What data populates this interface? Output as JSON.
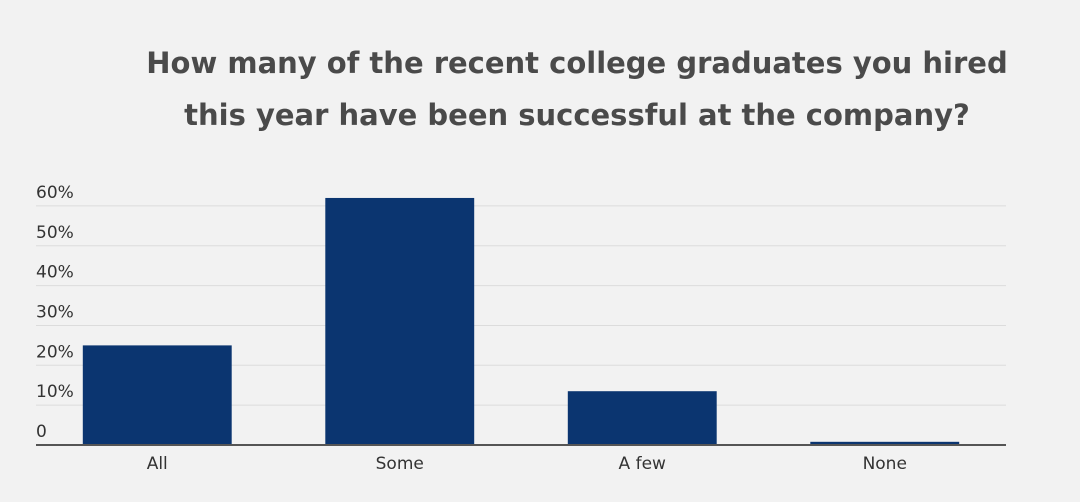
{
  "chart_data": {
    "type": "bar",
    "title": [
      "How many of the recent college graduates you hired",
      "this year have been successful at the company?"
    ],
    "categories": [
      "All",
      "Some",
      "A few",
      "None"
    ],
    "values": [
      25,
      62,
      13.5,
      0.8
    ],
    "color": "#0b3570",
    "ylim": [
      0,
      65
    ],
    "yticks": [
      0,
      {
        "value": 10,
        "label": "10%"
      },
      {
        "value": 20,
        "label": "20%"
      },
      {
        "value": 30,
        "label": "30%"
      },
      {
        "value": 40,
        "label": "40%"
      },
      {
        "value": 50,
        "label": "50%"
      },
      {
        "value": 60,
        "label": "60%"
      }
    ],
    "grid": true
  }
}
